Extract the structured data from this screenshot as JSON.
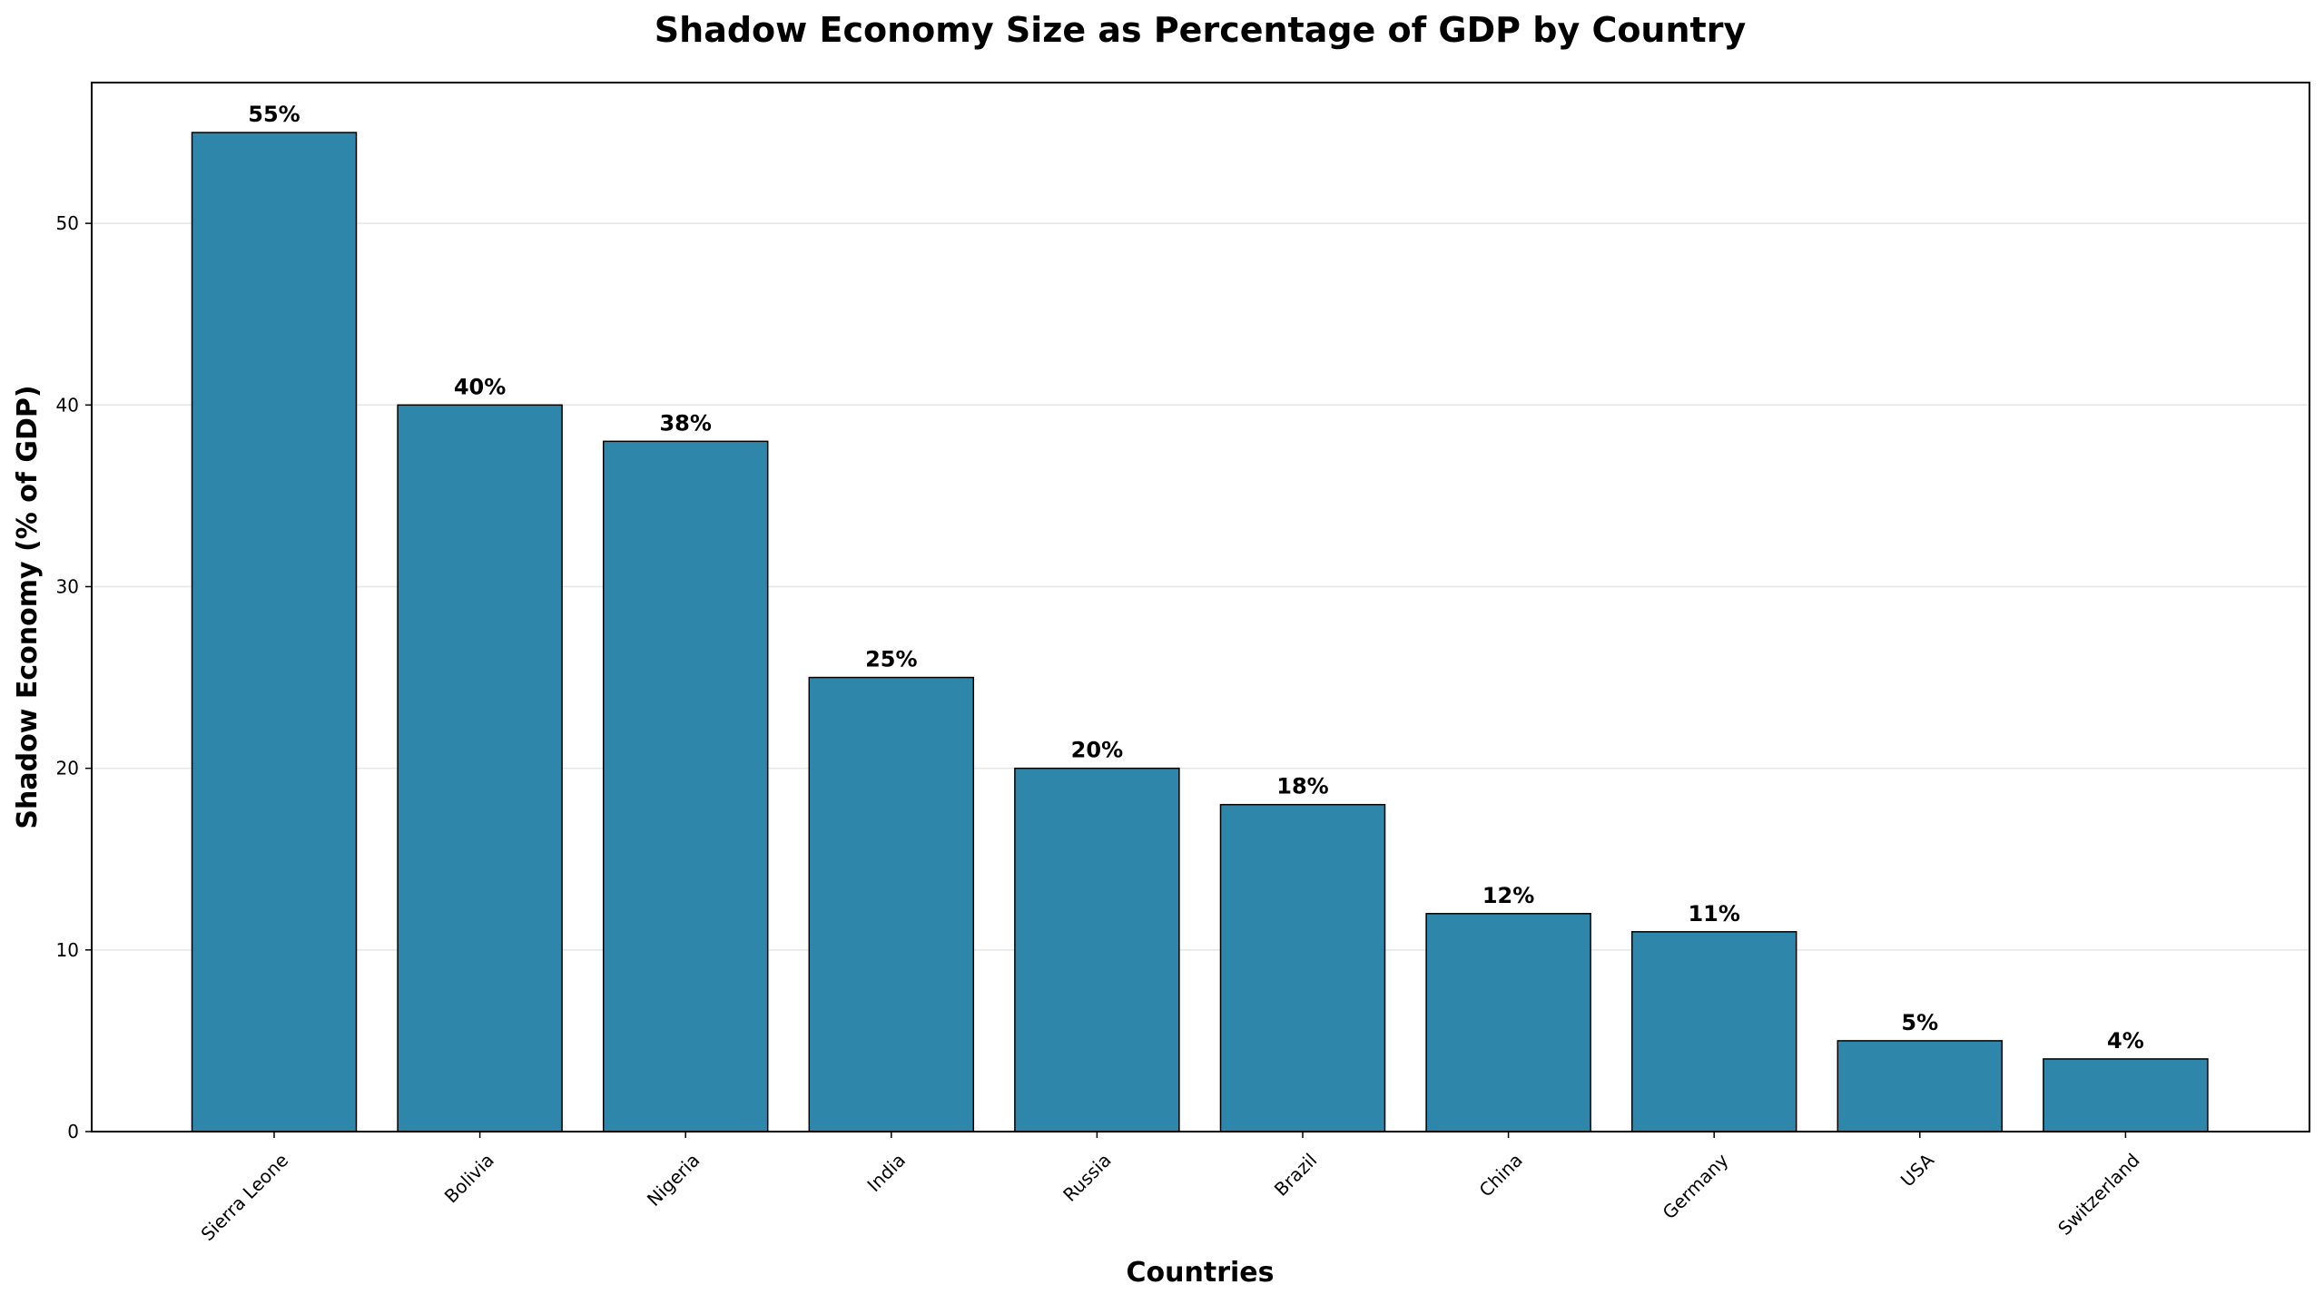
{
  "chart_data": {
    "type": "bar",
    "title": "Shadow Economy Size as Percentage of GDP by Country",
    "xlabel": "Countries",
    "ylabel": "Shadow Economy (% of GDP)",
    "categories": [
      "Sierra Leone",
      "Bolivia",
      "Nigeria",
      "India",
      "Russia",
      "Brazil",
      "China",
      "Germany",
      "USA",
      "Switzerland"
    ],
    "values": [
      55,
      40,
      38,
      25,
      20,
      18,
      12,
      11,
      5,
      4
    ],
    "data_labels": [
      "55%",
      "40%",
      "38%",
      "25%",
      "20%",
      "18%",
      "12%",
      "11%",
      "5%",
      "4%"
    ],
    "yticks": [
      0,
      10,
      20,
      30,
      40,
      50
    ],
    "ylim": [
      0,
      57.75
    ],
    "grid": "y",
    "bar_color": "#2E86AB",
    "edge_color": "#000000"
  }
}
